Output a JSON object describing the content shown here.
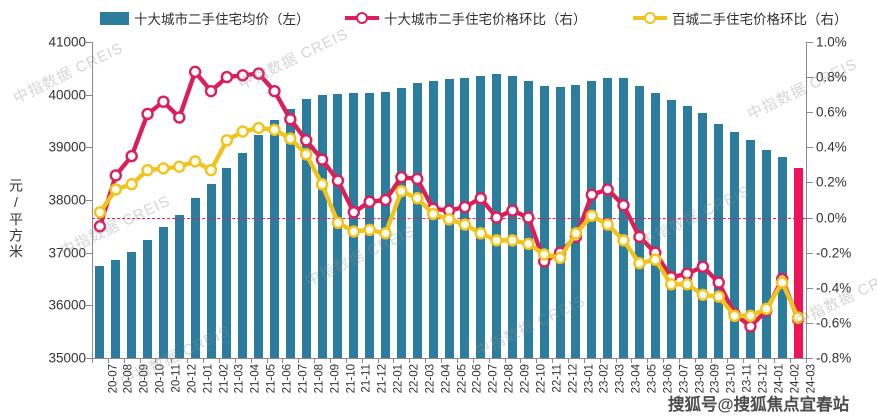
{
  "legend": [
    {
      "label": "十大城市二手住宅均价（左）",
      "type": "bar",
      "color": "#2b7c9d"
    },
    {
      "label": "十大城市二手住宅价格环比（右）",
      "type": "line",
      "color": "#dc1e5a"
    },
    {
      "label": "百城二手住宅价格环比（右）",
      "type": "line",
      "color": "#f0c41c"
    }
  ],
  "colors": {
    "bar": "#2b7c9d",
    "bar_highlight": "#ee1458",
    "line_ten_city": "#dc1e5a",
    "line_hundred_city": "#f0c41c",
    "zero_line": "#dc1e5a",
    "axis": "#8a8a8a"
  },
  "watermark": {
    "diagonal": "中指数据 CREIS",
    "bottom_right": "搜狐号@搜狐焦点宜春站"
  },
  "chart_data": {
    "type": "bar",
    "title": "",
    "categories": [
      "20-07",
      "20-08",
      "20-09",
      "20-10",
      "20-11",
      "20-12",
      "21-01",
      "21-02",
      "21-03",
      "21-04",
      "21-05",
      "21-06",
      "21-07",
      "21-08",
      "21-09",
      "21-10",
      "21-11",
      "21-12",
      "22-01",
      "22-02",
      "22-03",
      "22-04",
      "22-05",
      "22-06",
      "22-07",
      "22-08",
      "22-09",
      "22-10",
      "22-11",
      "22-12",
      "23-01",
      "23-02",
      "23-03",
      "23-04",
      "23-05",
      "23-06",
      "23-07",
      "23-08",
      "23-09",
      "23-10",
      "23-11",
      "23-12",
      "24-01",
      "24-02",
      "24-03"
    ],
    "series": [
      {
        "name": "十大城市二手住宅均价（左）",
        "type": "bar",
        "axis": "left",
        "unit": "元/平方米",
        "values": [
          36750,
          36860,
          37020,
          37240,
          37490,
          37715,
          38030,
          38300,
          38600,
          38900,
          39230,
          39520,
          39720,
          39920,
          39995,
          40015,
          40025,
          40040,
          40060,
          40135,
          40215,
          40260,
          40300,
          40310,
          40355,
          40385,
          40355,
          40260,
          40170,
          40150,
          40185,
          40260,
          40310,
          40325,
          40170,
          40030,
          39900,
          39790,
          39650,
          39450,
          39290,
          39130,
          38955,
          38810,
          38610
        ],
        "highlight_last": true
      },
      {
        "name": "十大城市二手住宅价格环比（右）",
        "type": "line",
        "axis": "right",
        "unit": "%",
        "values": [
          -0.05,
          0.24,
          0.35,
          0.59,
          0.66,
          0.57,
          0.83,
          0.72,
          0.8,
          0.81,
          0.82,
          0.72,
          0.56,
          0.44,
          0.33,
          0.21,
          0.03,
          0.09,
          0.1,
          0.23,
          0.22,
          0.05,
          0.04,
          0.06,
          0.11,
          0.0,
          0.04,
          0.0,
          -0.25,
          -0.2,
          -0.11,
          0.13,
          0.16,
          0.07,
          -0.11,
          -0.2,
          -0.34,
          -0.32,
          -0.28,
          -0.37,
          -0.55,
          -0.62,
          -0.53,
          -0.35,
          -0.58
        ]
      },
      {
        "name": "百城二手住宅价格环比（右）",
        "type": "line",
        "axis": "right",
        "unit": "%",
        "values": [
          0.03,
          0.16,
          0.19,
          0.27,
          0.28,
          0.29,
          0.32,
          0.27,
          0.44,
          0.49,
          0.51,
          0.5,
          0.45,
          0.36,
          0.19,
          -0.03,
          -0.08,
          -0.07,
          -0.09,
          0.15,
          0.11,
          0.02,
          -0.01,
          -0.04,
          -0.09,
          -0.13,
          -0.13,
          -0.15,
          -0.21,
          -0.23,
          -0.09,
          0.01,
          -0.04,
          -0.13,
          -0.26,
          -0.24,
          -0.38,
          -0.38,
          -0.44,
          -0.45,
          -0.56,
          -0.56,
          -0.52,
          -0.37,
          -0.57
        ]
      }
    ],
    "left_axis": {
      "label": "元/平方米",
      "range": [
        35000,
        41000
      ],
      "tick_step": 1000,
      "tick_labels": [
        "41000",
        "40000",
        "39000",
        "38000",
        "37000",
        "36000",
        "35000"
      ]
    },
    "right_axis": {
      "range": [
        -0.8,
        1.0
      ],
      "tick_step": 0.2,
      "tick_labels": [
        "1.0%",
        "0.8%",
        "0.6%",
        "0.4%",
        "0.2%",
        "0.0%",
        "-0.2%",
        "-0.4%",
        "-0.6%",
        "-0.8%"
      ]
    },
    "zero_line": {
      "value": 0,
      "style": "dashed"
    },
    "grid": false,
    "legend_position": "top"
  }
}
